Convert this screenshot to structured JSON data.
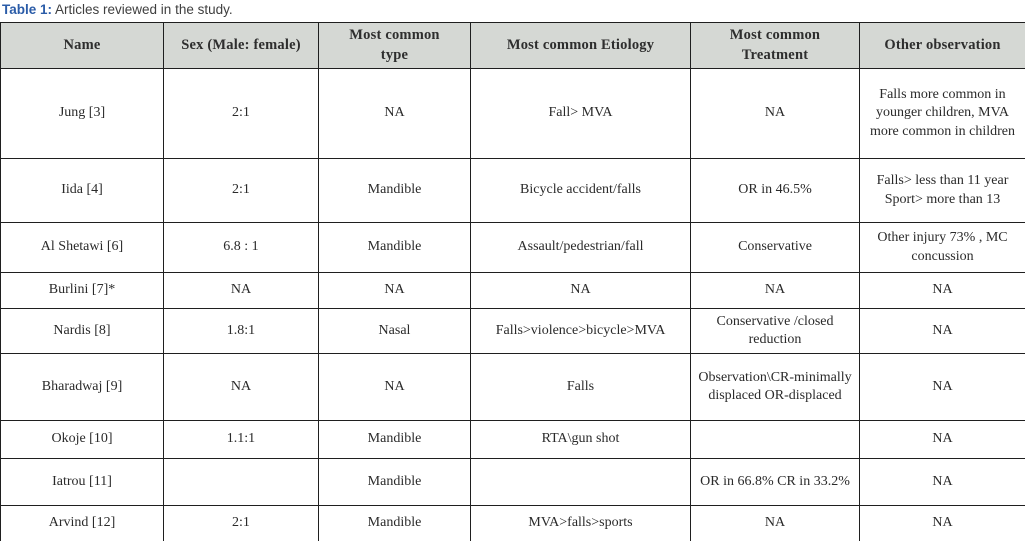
{
  "caption": {
    "label": "Table 1:",
    "text": " Articles reviewed in the study."
  },
  "table": {
    "columns": [
      "Name",
      "Sex (Male: female)",
      "Most common\ntype",
      "Most common Etiology",
      "Most common\nTreatment",
      "Other observation"
    ],
    "rows": [
      [
        "Jung [3]",
        "2:1",
        "NA",
        "Fall> MVA",
        "NA",
        "Falls more common in younger children, MVA more common in children"
      ],
      [
        "Iida [4]",
        "2:1",
        "Mandible",
        "Bicycle accident/falls",
        "OR in 46.5%",
        "Falls> less than 11 year Sport> more than 13"
      ],
      [
        "Al Shetawi [6]",
        "6.8 : 1",
        "Mandible",
        "Assault/pedestrian/fall",
        "Conservative",
        "Other injury 73% , MC concussion"
      ],
      [
        "Burlini [7]*",
        "NA",
        "NA",
        "NA",
        "NA",
        "NA"
      ],
      [
        "Nardis [8]",
        "1.8:1",
        "Nasal",
        "Falls>violence>bicycle>MVA",
        "Conservative /closed reduction",
        "NA"
      ],
      [
        "Bharadwaj [9]",
        "NA",
        "NA",
        "Falls",
        "Observation\\CR-minimally displaced OR-displaced",
        "NA"
      ],
      [
        "Okoje [10]",
        "1.1:1",
        "Mandible",
        "RTA\\gun shot",
        "",
        "NA"
      ],
      [
        "Iatrou [11]",
        "",
        "Mandible",
        "",
        "OR in 66.8% CR in 33.2%",
        "NA"
      ],
      [
        "Arvind [12]",
        "2:1",
        "Mandible",
        "MVA>falls>sports",
        "NA",
        "NA"
      ]
    ]
  },
  "colors": {
    "page_bg": "#ffffff",
    "header_bg": "#d5d8d4",
    "border": "#1f1f1f",
    "caption_accent": "#2b5ca8",
    "caption_text": "#3f3f3f",
    "cell_text": "#2a2a2a"
  }
}
